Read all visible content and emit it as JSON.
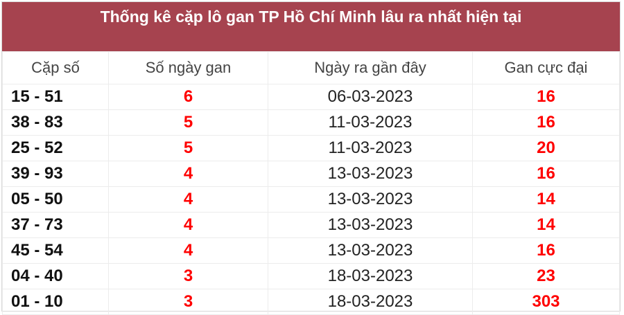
{
  "title": "Thống kê cặp lô gan TP Hồ Chí Minh lâu ra nhất hiện tại",
  "columns": [
    "Cặp số",
    "Số ngày gan",
    "Ngày ra gần đây",
    "Gan cực đại"
  ],
  "colors": {
    "header_bg": "#a6434f",
    "highlight": "#ff0000"
  },
  "rows": [
    {
      "pair": "15 - 51",
      "days": "6",
      "last_date": "06-03-2023",
      "max_gan": "16"
    },
    {
      "pair": "38 - 83",
      "days": "5",
      "last_date": "11-03-2023",
      "max_gan": "16"
    },
    {
      "pair": "25 - 52",
      "days": "5",
      "last_date": "11-03-2023",
      "max_gan": "20"
    },
    {
      "pair": "39 - 93",
      "days": "4",
      "last_date": "13-03-2023",
      "max_gan": "16"
    },
    {
      "pair": "05 - 50",
      "days": "4",
      "last_date": "13-03-2023",
      "max_gan": "14"
    },
    {
      "pair": "37 - 73",
      "days": "4",
      "last_date": "13-03-2023",
      "max_gan": "14"
    },
    {
      "pair": "45 - 54",
      "days": "4",
      "last_date": "13-03-2023",
      "max_gan": "16"
    },
    {
      "pair": "04 - 40",
      "days": "3",
      "last_date": "18-03-2023",
      "max_gan": "23"
    },
    {
      "pair": "01 - 10",
      "days": "3",
      "last_date": "18-03-2023",
      "max_gan": "303"
    }
  ]
}
